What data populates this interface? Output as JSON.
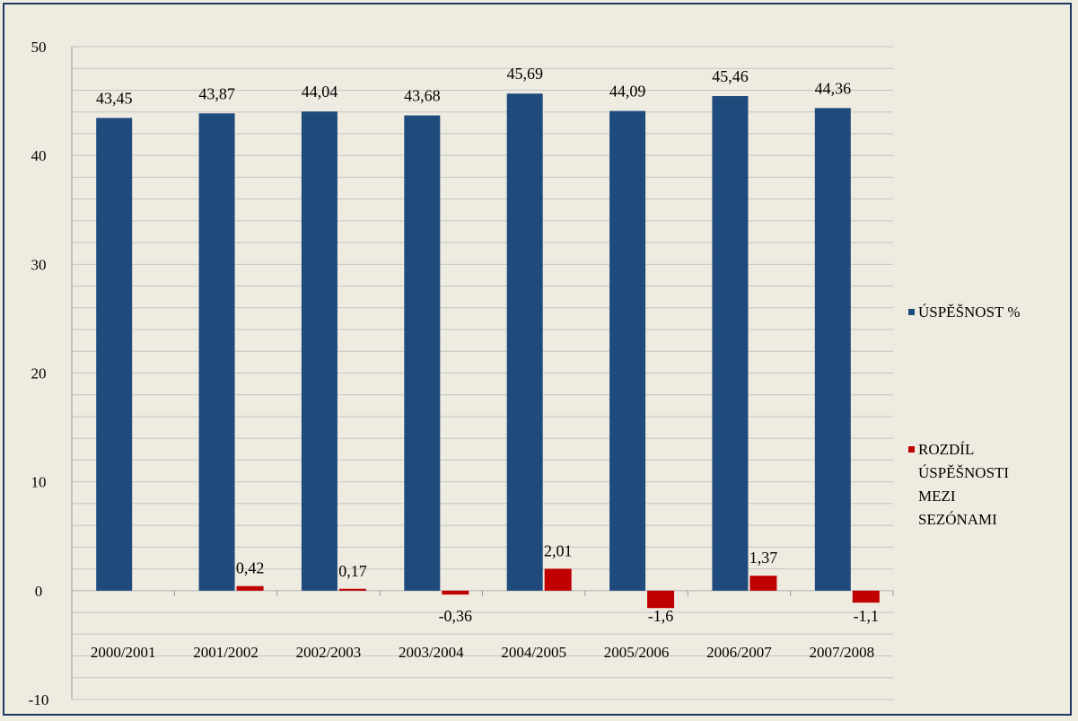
{
  "chart_data": {
    "type": "bar",
    "categories": [
      "2000/2001",
      "2001/2002",
      "2002/2003",
      "2003/2004",
      "2004/2005",
      "2005/2006",
      "2006/2007",
      "2007/2008"
    ],
    "category_labels": [
      "2000/2001",
      "2001/2002",
      "2002/2003",
      "2003/2004",
      "2004/2005",
      "2005/2006",
      "2006/2007",
      "2007/2008"
    ],
    "series": [
      {
        "name": "ÚSPĚŠNOST %",
        "color": "#1f4a7c",
        "values": [
          43.45,
          43.87,
          44.04,
          43.68,
          45.69,
          44.09,
          45.46,
          44.36
        ],
        "labels": [
          "43,45",
          "43,87",
          "44,04",
          "43,68",
          "45,69",
          "44,09",
          "45,46",
          "44,36"
        ]
      },
      {
        "name": "ROZDÍL ÚSPĚŠNOSTI MEZI SEZÓNAMI",
        "name_lines": [
          "ROZDÍL",
          "ÚSPĚŠNOSTI",
          "MEZI",
          "SEZÓNAMI"
        ],
        "color": "#c00000",
        "values": [
          0,
          0.42,
          0.17,
          -0.36,
          2.01,
          -1.6,
          1.37,
          -1.1
        ],
        "labels": [
          "",
          "0,42",
          "0,17",
          "-0,36",
          "2,01",
          "-1,6",
          "1,37",
          "-1,1"
        ]
      }
    ],
    "ylim": [
      -10,
      50
    ],
    "yticks": [
      -10,
      0,
      10,
      20,
      30,
      40,
      50
    ],
    "ytick_labels": [
      "-10",
      "0",
      "10",
      "20",
      "30",
      "40",
      "50"
    ],
    "grid": true,
    "legend_position": "right",
    "title": "",
    "xlabel": "",
    "ylabel": ""
  }
}
